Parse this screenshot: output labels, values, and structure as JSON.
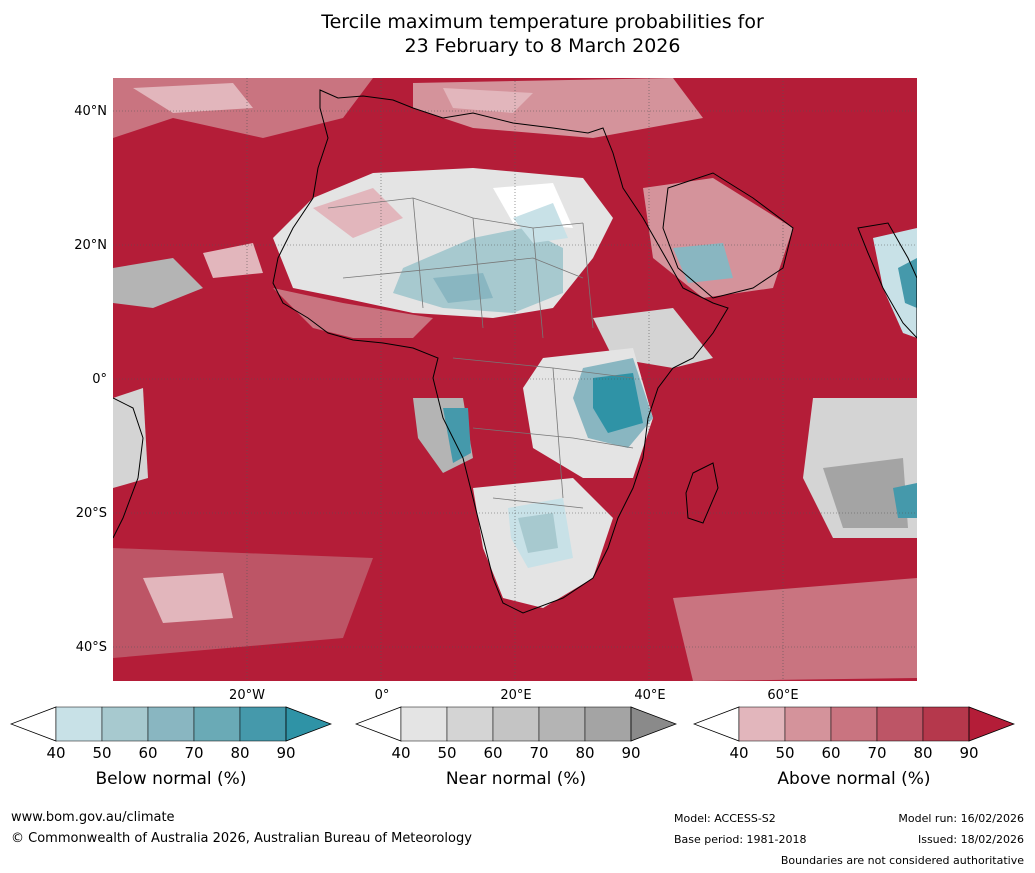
{
  "title": {
    "line1": "Tercile maximum temperature probabilities for",
    "line2": "23 February to 8 March 2026"
  },
  "map": {
    "lat_labels": [
      "40°N",
      "20°N",
      "0°",
      "20°S",
      "40°S"
    ],
    "lon_labels": [
      "20°W",
      "0°",
      "20°E",
      "40°E",
      "60°E"
    ]
  },
  "colorbars": [
    {
      "caption": "Below normal (%)",
      "ticks": [
        "40",
        "50",
        "60",
        "70",
        "80",
        "90"
      ],
      "colors": [
        "#c8e1e7",
        "#a7c9cf",
        "#89b6c1",
        "#6aaab6",
        "#4599ab"
      ],
      "over_color": "#2f93a6"
    },
    {
      "caption": "Near normal (%)",
      "ticks": [
        "40",
        "50",
        "60",
        "70",
        "80",
        "90"
      ],
      "colors": [
        "#e4e4e4",
        "#d4d4d4",
        "#c4c4c4",
        "#b4b4b4",
        "#a4a4a4"
      ],
      "over_color": "#8a8a8a"
    },
    {
      "caption": "Above normal (%)",
      "ticks": [
        "40",
        "50",
        "60",
        "70",
        "80",
        "90"
      ],
      "colors": [
        "#e2b6bc",
        "#d4939b",
        "#c97480",
        "#bd5566",
        "#b5384c"
      ],
      "over_color": "#b41d38"
    }
  ],
  "footer": {
    "website": "www.bom.gov.au/climate",
    "copyright": "© Commonwealth of Australia 2026, Australian Bureau of Meteorology",
    "model": "Model: ACCESS-S2",
    "base_period": "Base period: 1981-2018",
    "model_run": "Model run: 16/02/2026",
    "issued": "Issued: 18/02/2026",
    "disclaimer": "Boundaries are not considered authoritative"
  }
}
